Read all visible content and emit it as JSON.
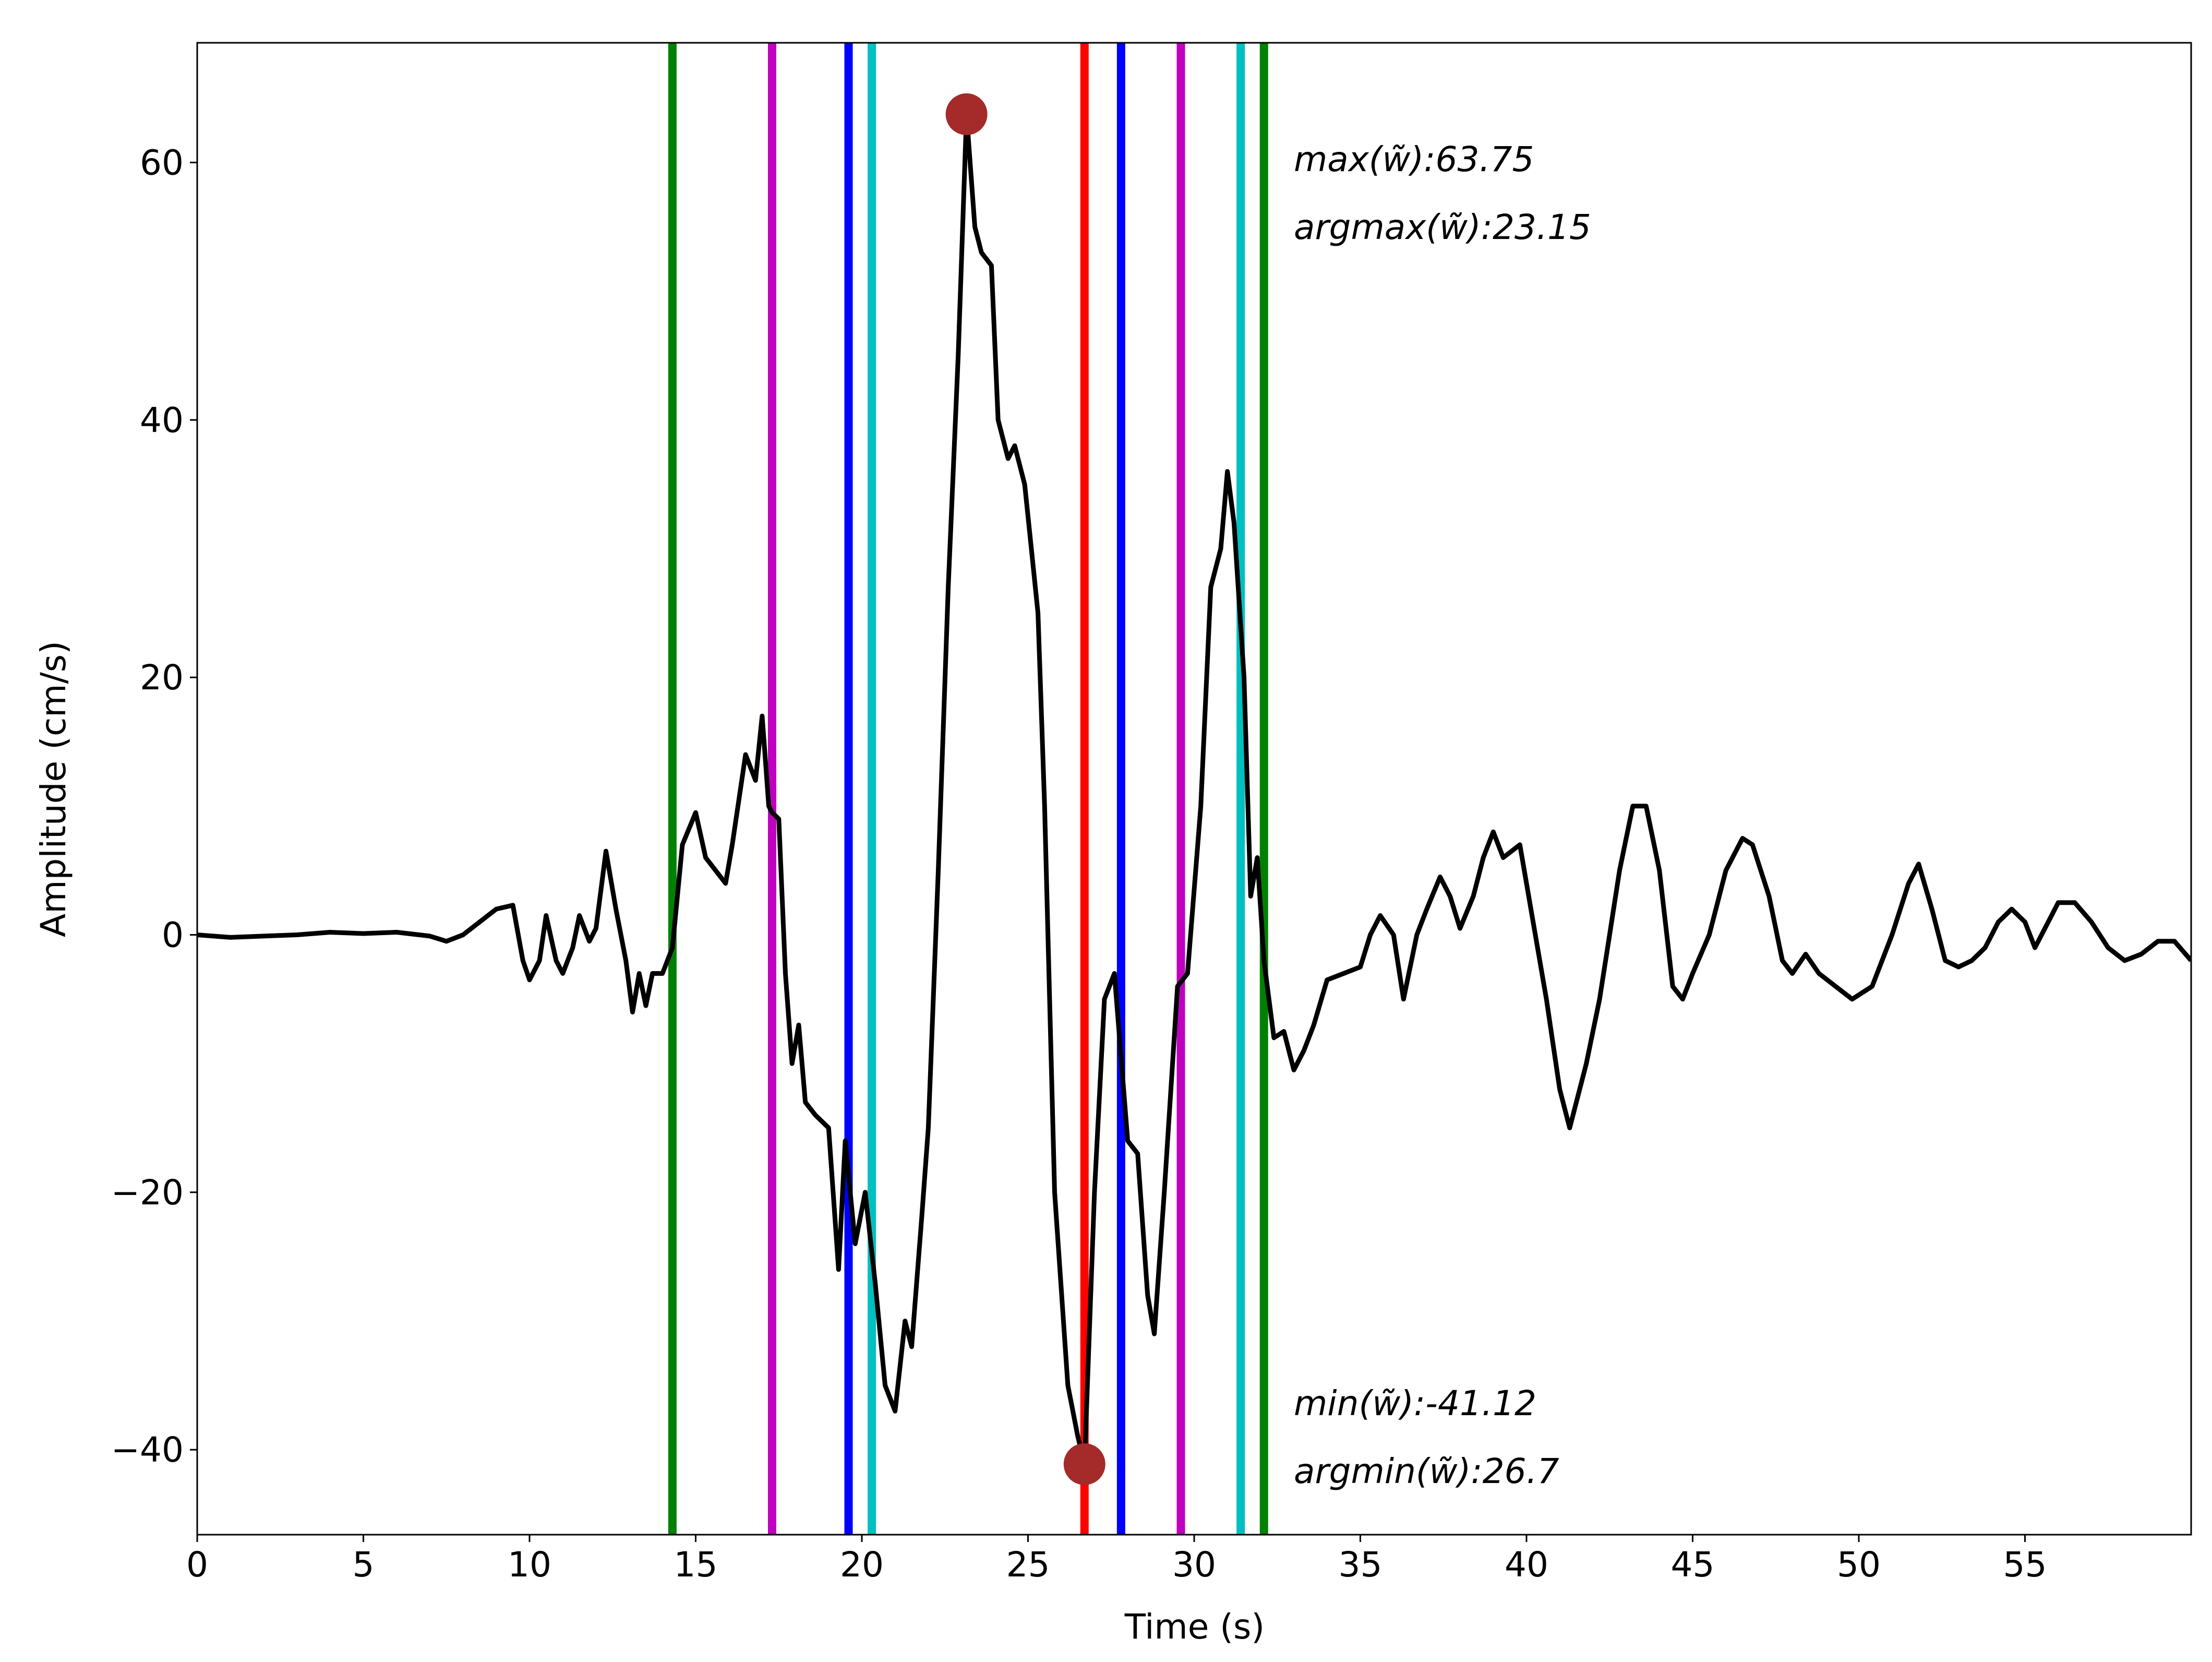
{
  "chart_data": {
    "type": "line",
    "xlabel": "Time (s)",
    "ylabel": "Amplitude (cm/s)",
    "xlim": [
      0,
      60
    ],
    "ylim": [
      -46.6,
      69.3
    ],
    "xticks": [
      0,
      5,
      10,
      15,
      20,
      25,
      30,
      35,
      40,
      45,
      50,
      55
    ],
    "yticks": [
      {
        "value": -40,
        "label": "−40"
      },
      {
        "value": -20,
        "label": "−20"
      },
      0,
      20,
      40,
      60
    ],
    "color": "#000000",
    "x": [
      0,
      1,
      2,
      3,
      4,
      5,
      6,
      7,
      7.5,
      8,
      8.5,
      9,
      9.5,
      9.8,
      10,
      10.3,
      10.5,
      10.8,
      11,
      11.3,
      11.5,
      11.8,
      12,
      12.3,
      12.6,
      12.9,
      13.1,
      13.3,
      13.5,
      13.7,
      14,
      14.3,
      14.6,
      15,
      15.3,
      15.6,
      15.9,
      16.1,
      16.5,
      16.8,
      17,
      17.2,
      17.3,
      17.5,
      17.7,
      17.9,
      18.1,
      18.3,
      18.6,
      19,
      19.3,
      19.5,
      19.8,
      20.1,
      20.4,
      20.7,
      21,
      21.3,
      21.5,
      21.8,
      22,
      22.3,
      22.6,
      22.9,
      23.15,
      23.4,
      23.6,
      23.9,
      24.1,
      24.4,
      24.6,
      24.9,
      25.1,
      25.3,
      25.5,
      25.8,
      26.2,
      26.5,
      26.7,
      27,
      27.3,
      27.6,
      28,
      28.3,
      28.6,
      28.8,
      29.1,
      29.5,
      29.8,
      30.2,
      30.5,
      30.8,
      31,
      31.2,
      31.5,
      31.7,
      31.9,
      32.1,
      32.4,
      32.7,
      33,
      33.3,
      33.6,
      34,
      34.5,
      35,
      35.3,
      35.6,
      36,
      36.3,
      36.7,
      37,
      37.4,
      37.7,
      38,
      38.4,
      38.7,
      39,
      39.3,
      39.8,
      40.2,
      40.6,
      41,
      41.3,
      41.8,
      42.2,
      42.5,
      42.8,
      43.2,
      43.6,
      44,
      44.4,
      44.7,
      45,
      45.5,
      46,
      46.5,
      46.8,
      47.3,
      47.7,
      48,
      48.4,
      48.8,
      49.3,
      49.8,
      50.4,
      51,
      51.5,
      51.8,
      52.2,
      52.6,
      53,
      53.4,
      53.8,
      54.2,
      54.6,
      55,
      55.3,
      55.7,
      56,
      56.5,
      57,
      57.5,
      58,
      58.5,
      59,
      59.5,
      60
    ],
    "values": [
      0,
      -0.2,
      -0.1,
      0,
      0.2,
      0.1,
      0.2,
      -0.1,
      -0.5,
      0,
      1,
      2,
      2.3,
      -2,
      -3.5,
      -2,
      1.5,
      -2,
      -3,
      -1,
      1.5,
      -0.5,
      0.5,
      6.5,
      2,
      -2,
      -6,
      -3,
      -5.5,
      -3,
      -3,
      -1,
      7,
      9.5,
      6,
      5,
      4,
      7,
      14,
      12,
      17,
      10,
      9.5,
      9,
      -3,
      -10,
      -7,
      -13,
      -14,
      -15,
      -26,
      -16,
      -24,
      -20,
      -27,
      -35,
      -37,
      -30,
      -32,
      -22,
      -15,
      5,
      27,
      45,
      63.75,
      55,
      53,
      52,
      40,
      37,
      38,
      35,
      30,
      25,
      10,
      -20,
      -35,
      -39,
      -41.12,
      -20,
      -5,
      -3,
      -16,
      -17,
      -28,
      -31,
      -20,
      -4,
      -3,
      10,
      27,
      30,
      36,
      32,
      20,
      3,
      6,
      -2,
      -8,
      -7.5,
      -10.5,
      -9,
      -7,
      -3.5,
      -3,
      -2.5,
      0,
      1.5,
      0,
      -5,
      0,
      2,
      4.5,
      3,
      0.5,
      3,
      6,
      8,
      6,
      7,
      1,
      -5,
      -12,
      -15,
      -10,
      -5,
      0,
      5,
      10,
      10,
      5,
      -4,
      -5,
      -3,
      0,
      5,
      7.5,
      7,
      3,
      -2,
      -3,
      -1.5,
      -3,
      -4,
      -5,
      -4,
      0,
      4,
      5.5,
      2,
      -2,
      -2.5,
      -2,
      -1,
      1,
      2,
      1,
      -1,
      1,
      2.5,
      2.5,
      1,
      -1,
      -2,
      -1.5,
      -0.5,
      -0.5,
      -2
    ],
    "vertical_lines": [
      {
        "x": 14.3,
        "color": "#008000"
      },
      {
        "x": 17.3,
        "color": "#bf00bf"
      },
      {
        "x": 19.6,
        "color": "#0000ff"
      },
      {
        "x": 20.3,
        "color": "#00bfbf"
      },
      {
        "x": 26.7,
        "color": "#ff0000"
      },
      {
        "x": 27.8,
        "color": "#0000ff"
      },
      {
        "x": 29.6,
        "color": "#bf00bf"
      },
      {
        "x": 31.4,
        "color": "#00bfbf"
      },
      {
        "x": 32.1,
        "color": "#008000"
      }
    ],
    "markers": [
      {
        "x": 23.15,
        "y": 63.75
      },
      {
        "x": 26.7,
        "y": -41.12
      }
    ],
    "marker_color": "#a52a2a",
    "annotations": [
      "max(w̃):63.75",
      "argmax(w̃):23.15",
      "min(w̃):-41.12",
      "argmin(w̃):26.7"
    ]
  }
}
